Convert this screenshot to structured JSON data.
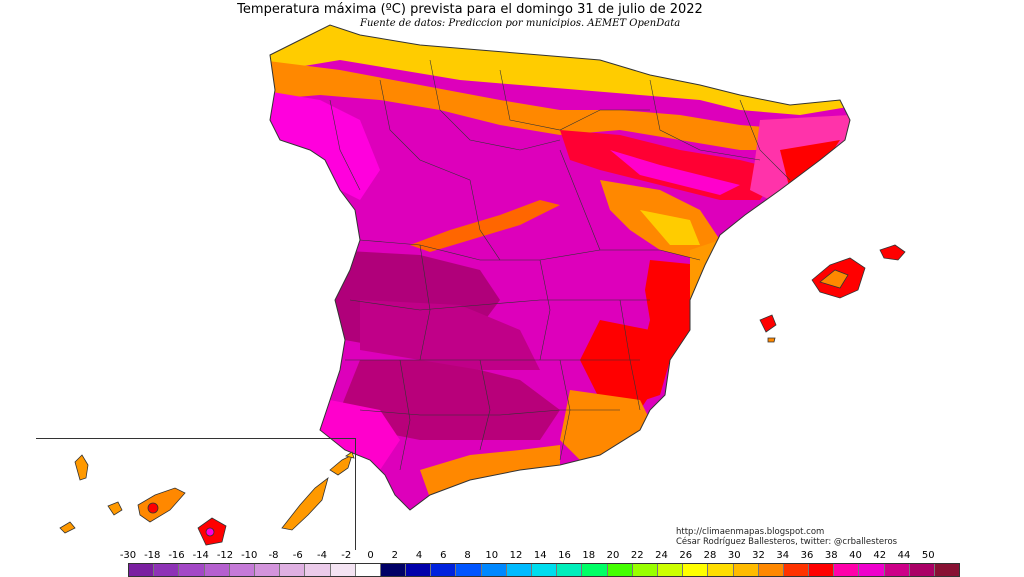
{
  "header": {
    "title": "Temperatura máxima (ºC) prevista para el domingo 31 de julio de 2022",
    "subtitle": "Fuente de datos: Prediccion por municipios. AEMET OpenData"
  },
  "credits": {
    "line1": "http://climaenmapas.blogspot.com",
    "line2": "César Rodríguez Ballesteros, twitter: @crballesteros"
  },
  "scale": {
    "labels": [
      "-30",
      "-18",
      "-16",
      "-14",
      "-12",
      "-10",
      "-8",
      "-6",
      "-4",
      "-2",
      "0",
      "2",
      "4",
      "6",
      "8",
      "10",
      "12",
      "14",
      "16",
      "18",
      "20",
      "22",
      "24",
      "26",
      "28",
      "30",
      "32",
      "34",
      "36",
      "38",
      "40",
      "42",
      "44",
      "50"
    ],
    "colors": [
      "#7a1fa0",
      "#8e33b6",
      "#a348c6",
      "#b560cf",
      "#c57ad8",
      "#d394dc",
      "#dfb0e2",
      "#ebcbea",
      "#f4e4f3",
      "#ffffff",
      "#000066",
      "#0000aa",
      "#0022dd",
      "#0055ff",
      "#0088ff",
      "#00bbff",
      "#00ddee",
      "#00eebb",
      "#00ff66",
      "#44ff00",
      "#99ff00",
      "#ccff00",
      "#ffff00",
      "#ffdd00",
      "#ffbb00",
      "#ff8800",
      "#ff3300",
      "#ff0000",
      "#ff00aa",
      "#ee00cc",
      "#cc0088",
      "#aa0066",
      "#881133"
    ]
  },
  "map_colors": {
    "hot_extreme": "#b8007a",
    "very_hot": "#dd00bb",
    "magenta": "#ff00dd",
    "hot": "#ff0000",
    "warm_orange": "#ff8800",
    "warm_yellow": "#ffbb00",
    "mild": "#ffee33",
    "border": "#333333"
  }
}
